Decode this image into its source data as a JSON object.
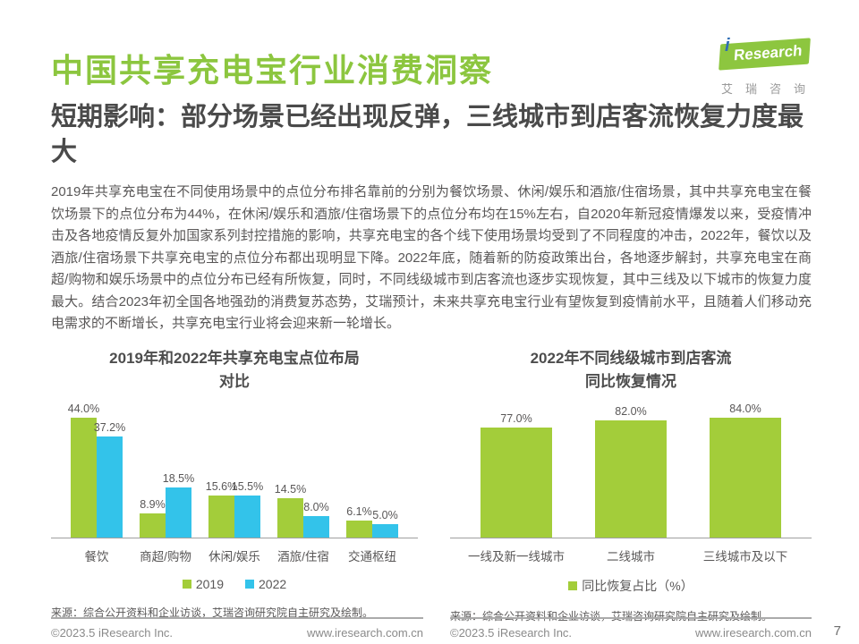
{
  "header": {
    "title": "中国共享充电宝行业消费洞察",
    "subtitle": "短期影响：部分场景已经出现反弹，三线城市到店客流恢复力度最大",
    "logo": {
      "i": "i",
      "name": "Research",
      "cn": "艾瑞咨询"
    }
  },
  "body": {
    "paragraph": "2019年共享充电宝在不同使用场景中的点位分布排名靠前的分别为餐饮场景、休闲/娱乐和酒旅/住宿场景，其中共享充电宝在餐饮场景下的点位分布为44%，在休闲/娱乐和酒旅/住宿场景下的点位分布均在15%左右，自2020年新冠疫情爆发以来，受疫情冲击及各地疫情反复外加国家系列封控措施的影响，共享充电宝的各个线下使用场景均受到了不同程度的冲击，2022年，餐饮以及酒旅/住宿场景下共享充电宝的点位分布都出现明显下降。2022年底，随着新的防疫政策出台，各地逐步解封，共享充电宝在商超/购物和娱乐场景中的点位分布已经有所恢复，同时，不同线级城市到店客流也逐步实现恢复，其中三线及以下城市的恢复力度最大。结合2023年初全国各地强劲的消费复苏态势，艾瑞预计，未来共享充电宝行业有望恢复到疫情前水平，且随着人们移动充电需求的不断增长，共享充电宝行业将会迎来新一轮增长。"
  },
  "chart_data": [
    {
      "type": "bar",
      "title": "2019年和2022年共享充电宝点位布局对比",
      "title_lines": [
        "2019年和2022年共享充电宝点位布局",
        "对比"
      ],
      "categories": [
        "餐饮",
        "商超/购物",
        "休闲/娱乐",
        "酒旅/住宿",
        "交通枢纽"
      ],
      "series": [
        {
          "name": "2019",
          "color": "#a3cd3a",
          "values": [
            44.0,
            8.9,
            15.6,
            14.5,
            6.1
          ]
        },
        {
          "name": "2022",
          "color": "#33c3ea",
          "values": [
            37.2,
            18.5,
            15.5,
            8.0,
            5.0
          ]
        }
      ],
      "value_suffix": "%",
      "data_labels": true,
      "xlabel": "",
      "ylabel": "",
      "ylim": [
        0,
        50
      ],
      "grid": false,
      "y_axis_visible": false,
      "legend_position": "bottom"
    },
    {
      "type": "bar",
      "title": "2022年不同线级城市到店客流同比恢复情况",
      "title_lines": [
        "2022年不同线级城市到店客流",
        "同比恢复情况"
      ],
      "categories": [
        "一线及新一线城市",
        "二线城市",
        "三线城市及以下"
      ],
      "series": [
        {
          "name": "同比恢复占比（%）",
          "color": "#a3cd3a",
          "values": [
            77.0,
            82.0,
            84.0
          ]
        }
      ],
      "value_suffix": "%",
      "data_labels": true,
      "xlabel": "",
      "ylabel": "",
      "ylim": [
        0,
        100
      ],
      "grid": false,
      "y_axis_visible": false,
      "legend_position": "bottom"
    }
  ],
  "sources": {
    "left": "来源：综合公开资料和企业访谈，艾瑞咨询研究院自主研究及绘制。",
    "right": "来源：综合公开资料和企业访谈，艾瑞咨询研究院自主研究及绘制。"
  },
  "footer": {
    "copyright": "©2023.5 iResearch Inc.",
    "website": "www.iresearch.com.cn",
    "page_number": "7"
  },
  "colors": {
    "brand_green": "#8cc63f",
    "bar_green": "#a3cd3a",
    "bar_cyan": "#33c3ea",
    "heading_gray": "#4a4a4a",
    "body_gray": "#595757"
  }
}
